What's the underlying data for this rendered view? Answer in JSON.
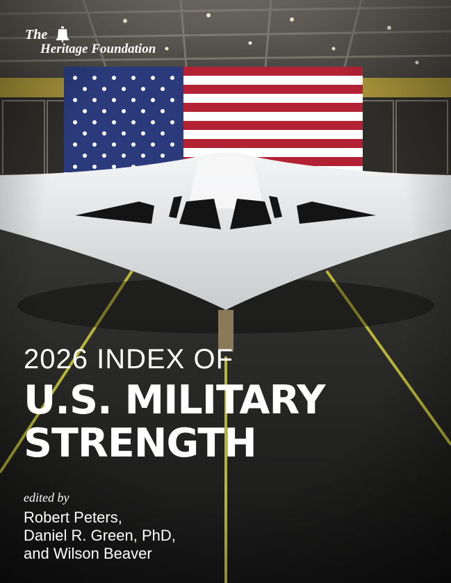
{
  "publisher": {
    "name_line1": "The",
    "name_line2": "Heritage Foundation",
    "logo_icon": "liberty-bell-icon"
  },
  "cover_image": {
    "description_icon": "stealth-bomber-image",
    "colors": {
      "flag_red": "#b22234",
      "flag_blue": "#2a3a7a",
      "aircraft": "#e9eaec",
      "floor_stripe": "#c9c43a"
    }
  },
  "title": {
    "year_line": "2026 INDEX OF",
    "main_line1": "U.S. MILITARY",
    "main_line2": "STRENGTH"
  },
  "credits": {
    "label": "edited by",
    "editors": [
      "Robert Peters,",
      "Daniel R. Green, PhD,",
      "and Wilson Beaver"
    ]
  }
}
